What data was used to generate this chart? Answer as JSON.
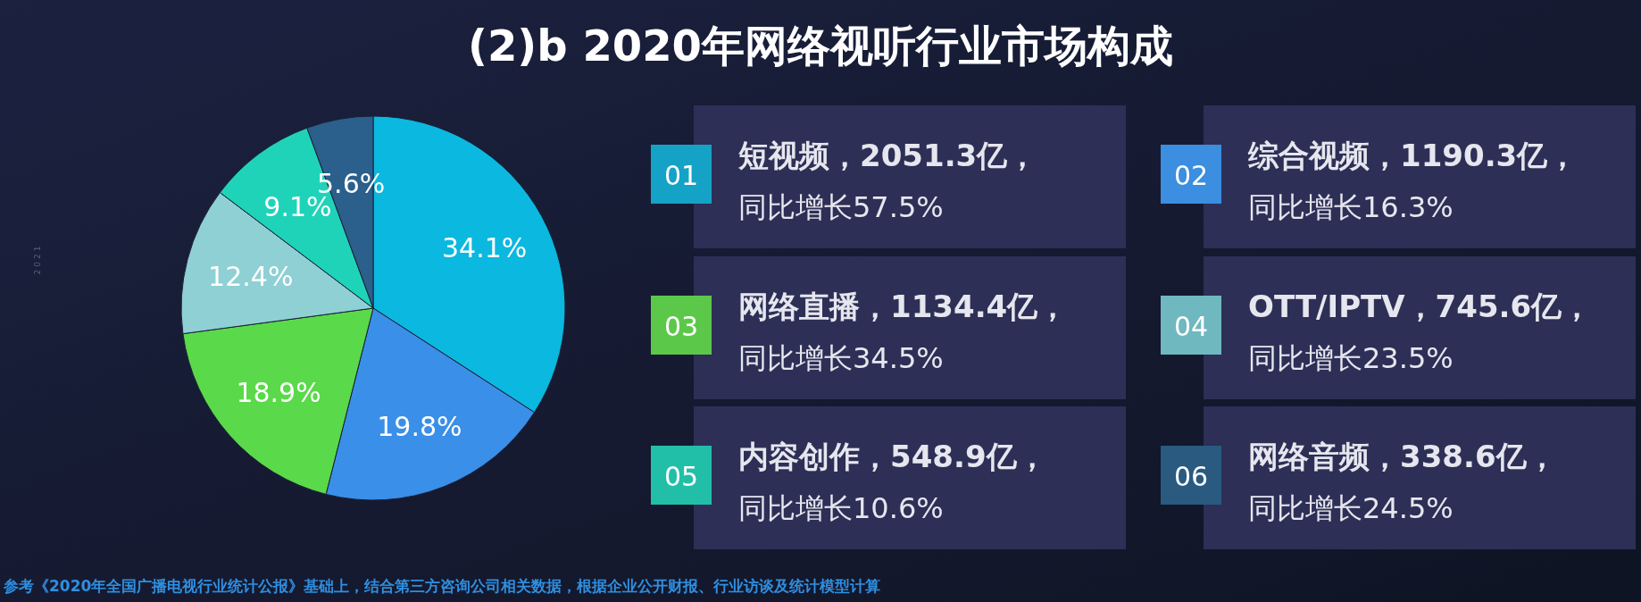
{
  "chart_data": [
    {
      "type": "pie",
      "title": "(2)b 2020年网络视听行业市场构成",
      "categories": [
        null,
        null,
        null,
        null,
        null,
        null
      ],
      "values": [
        34.1,
        19.8,
        18.9,
        12.4,
        9.1,
        5.6
      ],
      "colors": [
        "#0bb8df",
        "#3a8fe8",
        "#5ad94a",
        "#8fd0d4",
        "#1fd3b9",
        "#2b5f8c"
      ],
      "value_labels": [
        "34.1%",
        "19.8%",
        "18.9%",
        "12.4%",
        "9.1%",
        "5.6%"
      ],
      "annotations": [
        "2021",
        "参考《2020年全国广播电视行业统计公报》基础上，结合第三方咨询公司相关数据，根据企业公开财报、行业访谈及统计模型计算"
      ]
    },
    {
      "type": "other",
      "colors": [
        "#14a3c7",
        "#3b8ee0",
        "#5cc84a",
        "#6fb8bf",
        "#22bfa8",
        "#2a5a80"
      ],
      "annotations": [
        "01",
        "短视频，2051.3亿，",
        "同比增长57.5%",
        "02",
        "综合视频，1190.3亿，",
        "同比增长16.3%",
        "03",
        "网络直播，1134.4亿，",
        "同比增长34.5%",
        "04",
        "OTT/IPTV，745.6亿，",
        "同比增长23.5%",
        "05",
        "内容创作，548.9亿，",
        "同比增长10.6%",
        "06",
        "网络音频，338.6亿，",
        "同比增长24.5%"
      ]
    }
  ]
}
